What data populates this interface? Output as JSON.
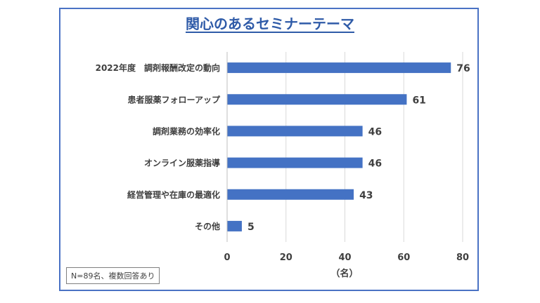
{
  "chart_data": {
    "type": "bar",
    "orientation": "horizontal",
    "title": "関心のあるセミナーテーマ",
    "categories": [
      "2022年度　調剤報酬改定の動向",
      "患者服薬フォローアップ",
      "調剤業務の効率化",
      "オンライン服薬指導",
      "経営管理や在庫の最適化",
      "その他"
    ],
    "values": [
      76,
      61,
      46,
      46,
      43,
      5
    ],
    "xlabel": "（名）",
    "ylabel": "",
    "xlim": [
      0,
      80
    ],
    "ticks": [
      0,
      20,
      40,
      60,
      80
    ],
    "grid": true,
    "legend": "none",
    "colors": {
      "bar": "#4472c4",
      "frame": "#4a72c4",
      "title": "#2f5ba8",
      "grid": "#d9d9d9"
    }
  },
  "note": "N=89名、複数回答あり"
}
